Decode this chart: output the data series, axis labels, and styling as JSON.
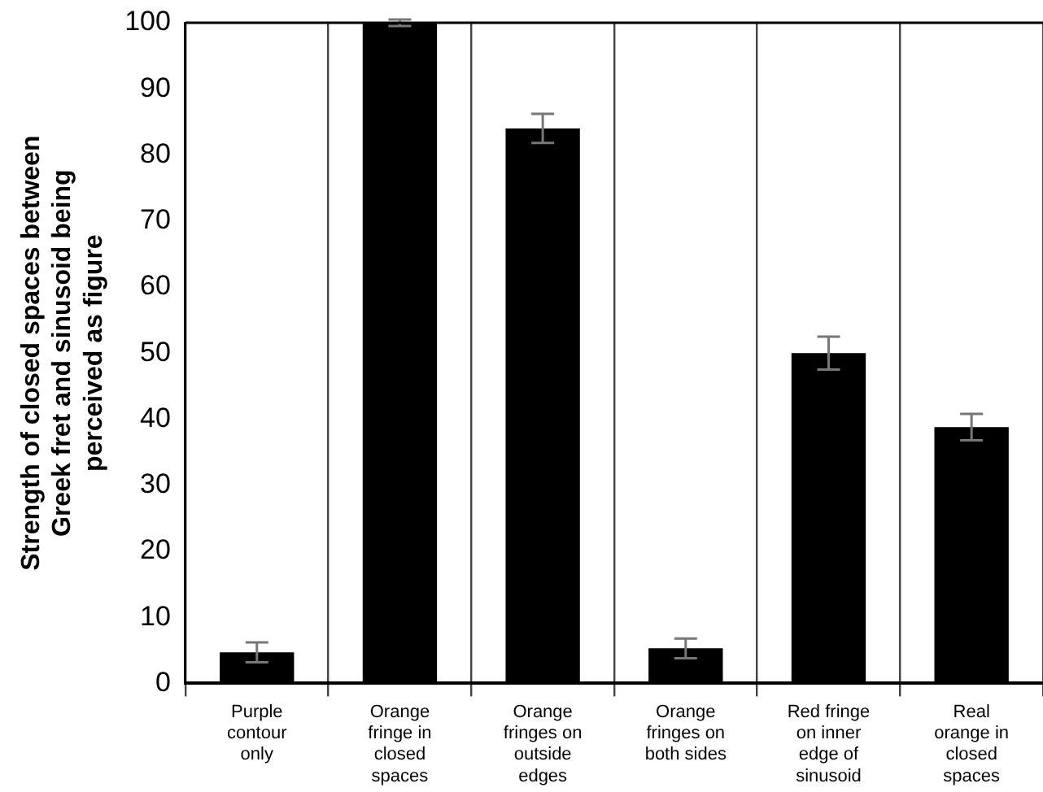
{
  "chart_data": {
    "type": "bar",
    "ylabel": "Strength of closed spaces between\nGreek fret and sinusoid being\nperceived as figure",
    "categories": [
      "Purple\ncontour\nonly",
      "Orange\nfringe in\nclosed\nspaces",
      "Orange\nfringes on\noutside\nedges",
      "Orange\nfringes on\nboth sides",
      "Red fringe\non inner\nedge of\nsinusoid",
      "Real\norange in\nclosed\nspaces"
    ],
    "values": [
      4.7,
      100,
      84,
      5.3,
      50,
      38.8
    ],
    "errors": [
      1.5,
      0.5,
      2.2,
      1.5,
      2.5,
      2
    ],
    "color": "#000000",
    "ylim": [
      0,
      100
    ],
    "yticks": [
      0,
      10,
      20,
      30,
      40,
      50,
      60,
      70,
      80,
      90,
      100
    ],
    "grid": "x",
    "legend": false
  }
}
